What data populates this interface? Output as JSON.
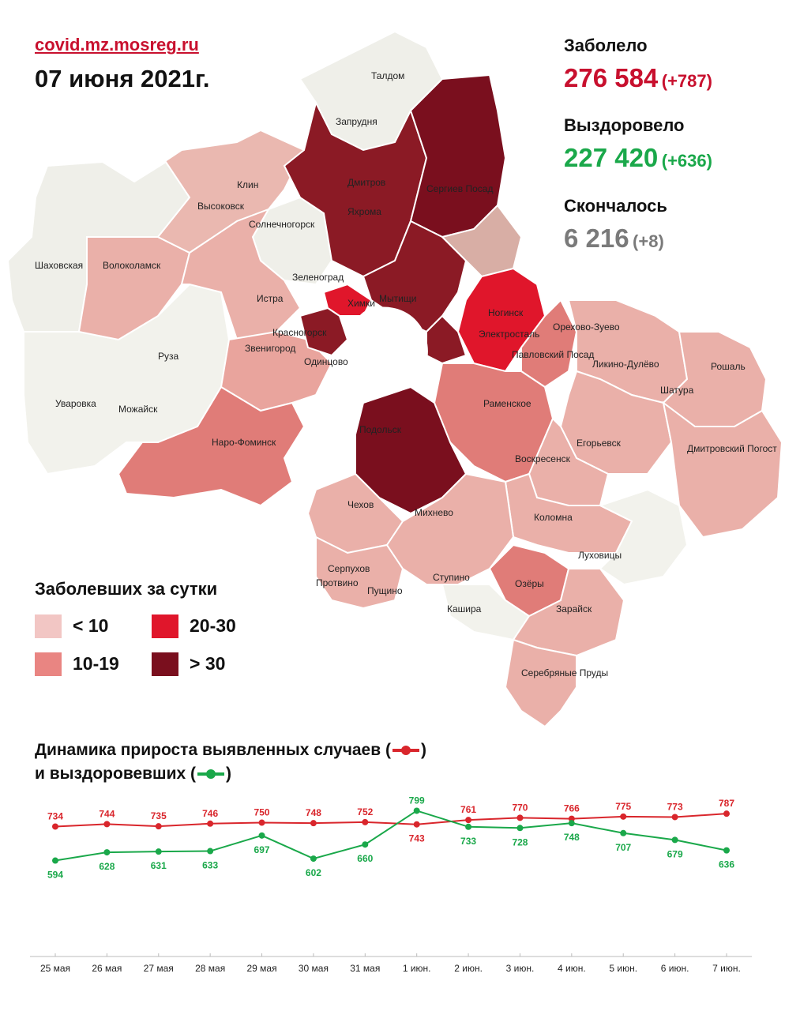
{
  "header": {
    "site": "covid.mz.mosreg.ru",
    "date": "07 июня 2021г."
  },
  "stats": {
    "infected_label": "Заболело",
    "infected_value": "276 584",
    "infected_delta": "(+787)",
    "recovered_label": "Выздоровело",
    "recovered_value": "227 420",
    "recovered_delta": "(+636)",
    "deaths_label": "Скончалось",
    "deaths_value": "6 216",
    "deaths_delta": "(+8)"
  },
  "colors": {
    "red": "#c8102e",
    "green": "#1aa84a",
    "gray": "#7a7a7a",
    "lt10": "#f2c6c4",
    "r10_19": "#e98582",
    "r20_30": "#e0162b",
    "gt30": "#7a0f1e"
  },
  "map_labels": [
    "Талдом",
    "Запрудня",
    "Дмитров",
    "Сергиев Посад",
    "Яхрома",
    "Клин",
    "Высоковск",
    "Солнечногорск",
    "Шаховская",
    "Волоколамск",
    "Зеленоград",
    "Истра",
    "Мытищи",
    "Красногорск",
    "Химки",
    "Ногинск",
    "Электросталь",
    "Орехово-Зуево",
    "Павловский Посад",
    "Ликино-Дулёво",
    "Рошаль",
    "Шатура",
    "Звенигород",
    "Одинцово",
    "Руза",
    "Уваровка",
    "Можайск",
    "Наро-Фоминск",
    "Раменское",
    "Подольск",
    "Егорьевск",
    "Воскресенск",
    "Дмитровский Погост",
    "Чехов",
    "Михнево",
    "Коломна",
    "Луховицы",
    "Серпухов",
    "Протвино",
    "Пущино",
    "Ступино",
    "Озёры",
    "Кашира",
    "Зарайск",
    "Серебряные Пруды"
  ],
  "legend": {
    "title": "Заболевших за сутки",
    "items": [
      {
        "label": "< 10",
        "color": "#f2c6c4"
      },
      {
        "label": "10-19",
        "color": "#e98582"
      },
      {
        "label": "20-30",
        "color": "#e0162b"
      },
      {
        "label": "> 30",
        "color": "#7a0f1e"
      }
    ]
  },
  "dynamics_title_line1": "Динамика прироста выявленных случаев (",
  "dynamics_title_line1_end": ")",
  "dynamics_title_line2": "и выздоровевших (",
  "dynamics_title_line2_end": ")",
  "chart_data": {
    "type": "line",
    "categories": [
      "25 мая",
      "26 мая",
      "27 мая",
      "28 мая",
      "29 мая",
      "30 мая",
      "31 мая",
      "1 июн.",
      "2 июн.",
      "3 июн.",
      "4 июн.",
      "5 июн.",
      "6 июн.",
      "7 июн."
    ],
    "series": [
      {
        "values": [
          734,
          744,
          735,
          746,
          750,
          748,
          752,
          743,
          761,
          770,
          766,
          775,
          773,
          787
        ],
        "color": "#d9262c"
      },
      {
        "values": [
          594,
          628,
          631,
          633,
          697,
          602,
          660,
          799,
          733,
          728,
          748,
          707,
          679,
          636
        ],
        "color": "#1aa84a"
      }
    ],
    "ylim": [
      560,
      820
    ],
    "grid": false
  }
}
